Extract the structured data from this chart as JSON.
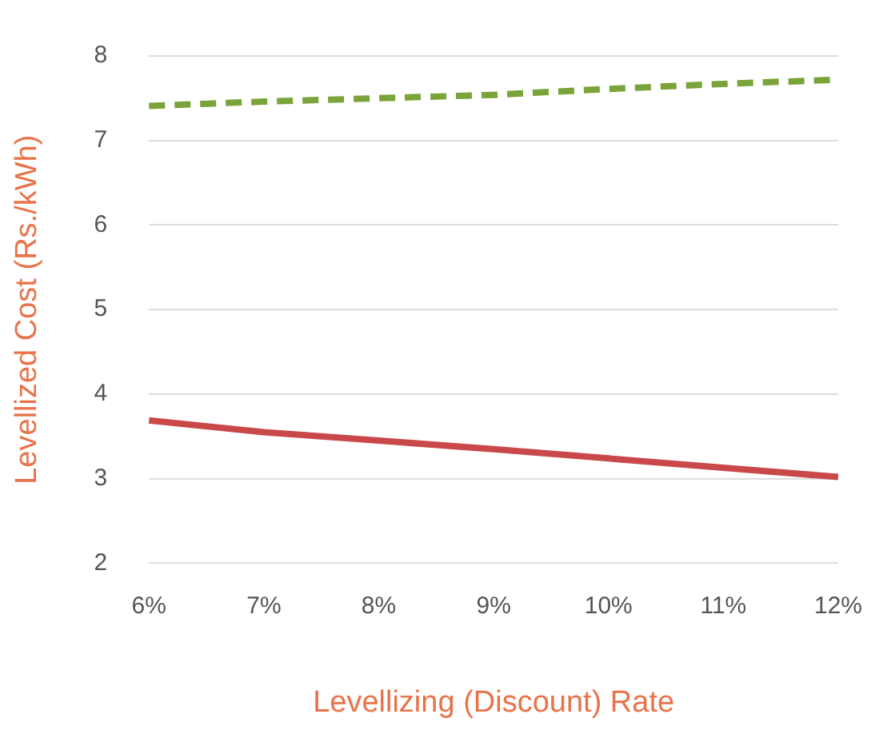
{
  "chart_data": {
    "type": "line",
    "xlabel": "Levellizing (Discount) Rate",
    "ylabel": "Levellized Cost (Rs./kWh)",
    "categories": [
      "6%",
      "7%",
      "8%",
      "9%",
      "10%",
      "11%",
      "12%"
    ],
    "series": [
      {
        "color": "#7aa33a",
        "line_style": "dashed",
        "values": [
          7.41,
          7.46,
          7.5,
          7.54,
          7.61,
          7.67,
          7.72
        ]
      },
      {
        "color": "#c9484a",
        "line_style": "solid",
        "values": [
          3.69,
          3.55,
          3.45,
          3.35,
          3.24,
          3.13,
          3.02
        ]
      }
    ],
    "ylim": [
      2,
      8
    ],
    "yticks": [
      2,
      3,
      4,
      5,
      6,
      7,
      8
    ],
    "grid": "y",
    "marker": "none",
    "legend": false
  }
}
